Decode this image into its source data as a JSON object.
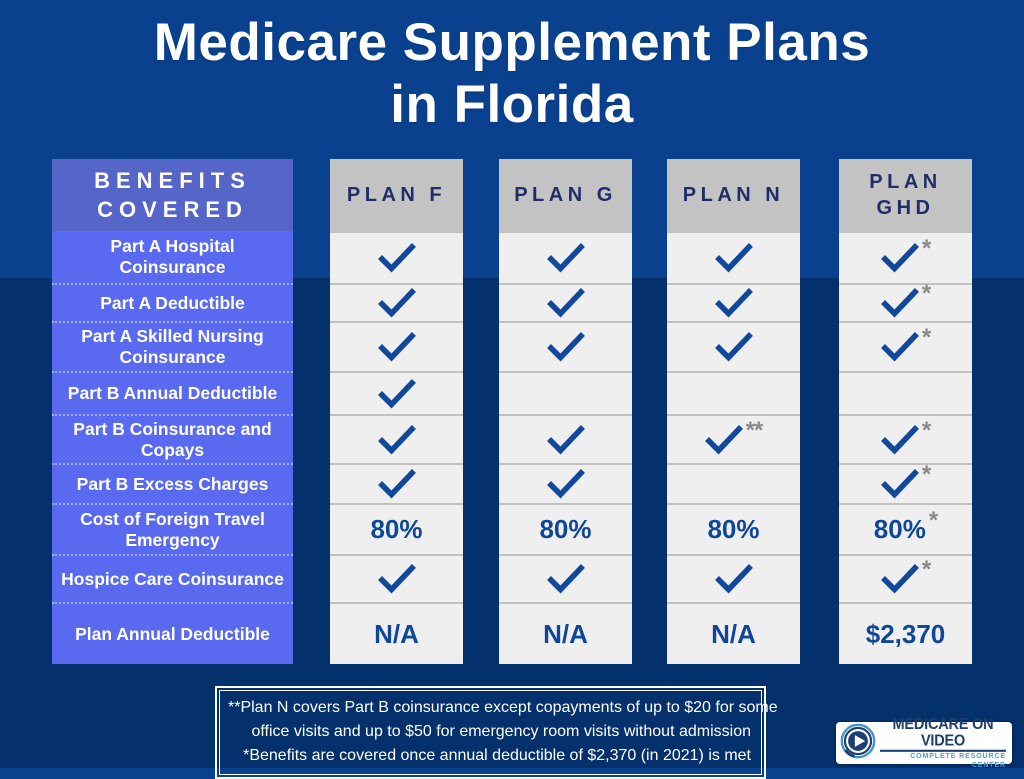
{
  "title": "Medicare Supplement Plans\nin Florida",
  "colors": {
    "background_top": "#09418F",
    "background_bottom": "#04306B",
    "benefits_header_bg": "#5565C8",
    "benefits_row_bg": "#5A6AF0",
    "plan_header_bg": "#C3C3C3",
    "cell_bg": "#EFEFEF",
    "check_blue": "#11489B",
    "value_blue": "#0E4798",
    "note_gray": "#8A8A8A",
    "header_text_navy": "#1F2E69"
  },
  "table": {
    "benefits_header": "BENEFITS COVERED",
    "benefits": [
      "Part A Hospital Coinsurance",
      "Part A Deductible",
      "Part A Skilled Nursing Coinsurance",
      "Part B Annual Deductible",
      "Part B Coinsurance and Copays",
      "Part B Excess Charges",
      "Cost of Foreign Travel Emergency",
      "Hospice Care Coinsurance",
      "Plan Annual Deductible"
    ],
    "plans": [
      {
        "name": "PLAN F",
        "cells": [
          {
            "check": true
          },
          {
            "check": true
          },
          {
            "check": true
          },
          {
            "check": true
          },
          {
            "check": true
          },
          {
            "check": true
          },
          {
            "text": "80%"
          },
          {
            "check": true
          },
          {
            "text": "N/A"
          }
        ]
      },
      {
        "name": "PLAN G",
        "cells": [
          {
            "check": true
          },
          {
            "check": true
          },
          {
            "check": true
          },
          {},
          {
            "check": true
          },
          {
            "check": true
          },
          {
            "text": "80%"
          },
          {
            "check": true
          },
          {
            "text": "N/A"
          }
        ]
      },
      {
        "name": "PLAN N",
        "cells": [
          {
            "check": true
          },
          {
            "check": true
          },
          {
            "check": true
          },
          {},
          {
            "check": true,
            "note": "**"
          },
          {},
          {
            "text": "80%"
          },
          {
            "check": true
          },
          {
            "text": "N/A"
          }
        ]
      },
      {
        "name": "PLAN GHD",
        "cells": [
          {
            "check": true,
            "note": "*"
          },
          {
            "check": true,
            "note": "*"
          },
          {
            "check": true,
            "note": "*"
          },
          {},
          {
            "check": true,
            "note": "*"
          },
          {
            "check": true,
            "note": "*"
          },
          {
            "text": "80%",
            "note": "*"
          },
          {
            "check": true,
            "note": "*"
          },
          {
            "text": "$2,370"
          }
        ]
      }
    ]
  },
  "footnote": {
    "lines": [
      "**Plan N covers Part B coinsurance except copayments of up to $20 for some",
      "office visits and up to $50  for emergency room visits without admission",
      "*Benefits are covered once annual deductible of $2,370 (in 2021) is met"
    ]
  },
  "logo": {
    "title": "MEDICARE ON VIDEO",
    "subtitle": "COMPLETE RESOURCE CENTER",
    "icon": "play-icon"
  }
}
